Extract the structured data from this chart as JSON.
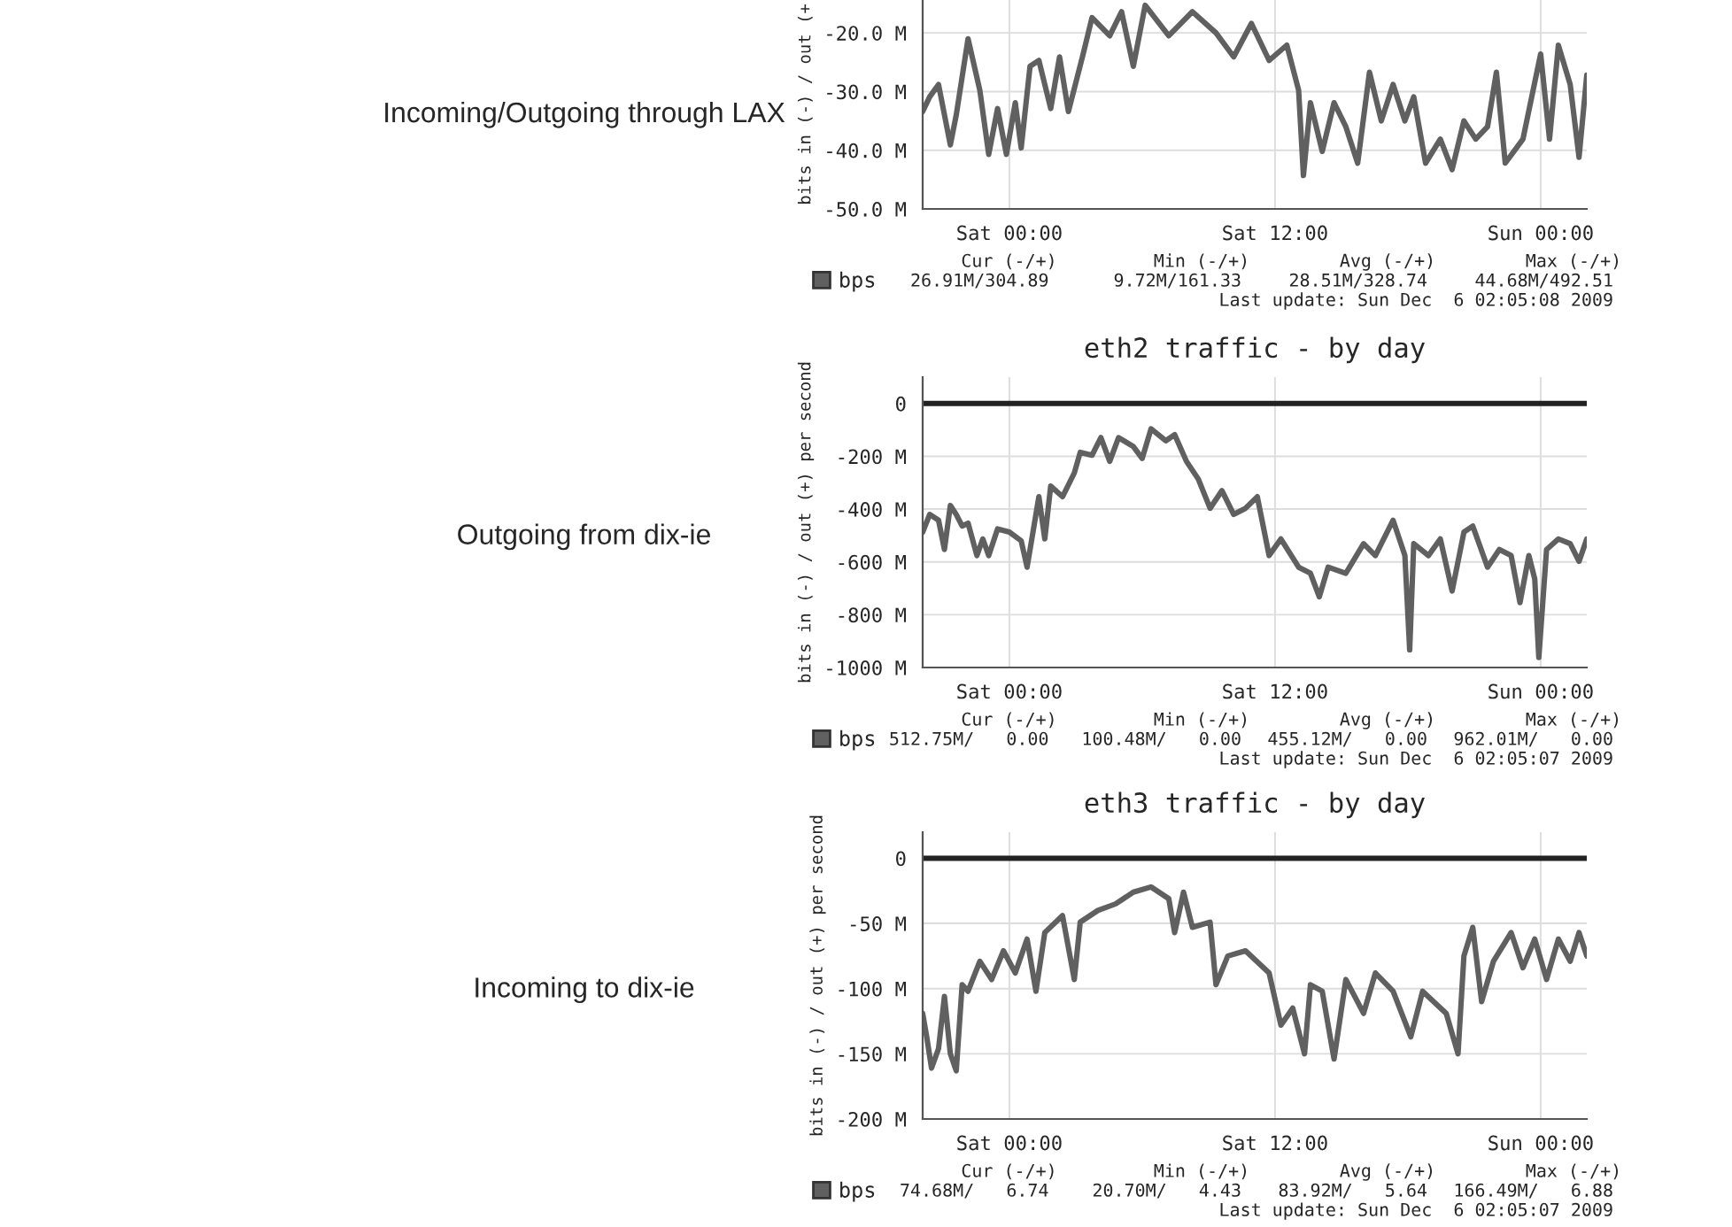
{
  "chart_data": [
    {
      "type": "line",
      "subtitle": "Incoming/Outgoing through LAX",
      "ylabel": "bits in (-) / out (+",
      "xlim": [
        "2009-12-04T20:05",
        "2009-12-06T02:05"
      ],
      "xticks": [
        {
          "value": "2009-12-05T00:00",
          "label": "Sat 00:00"
        },
        {
          "value": "2009-12-05T12:00",
          "label": "Sat 12:00"
        },
        {
          "value": "2009-12-06T00:00",
          "label": "Sun 00:00"
        }
      ],
      "ylim": [
        -50,
        -14.4
      ],
      "yticks": [
        {
          "value": -50,
          "label": "-50.0 M"
        },
        {
          "value": -40,
          "label": "-40.0 M"
        },
        {
          "value": -30,
          "label": "-30.0 M"
        },
        {
          "value": -20,
          "label": "-20.0 M"
        }
      ],
      "grid": true,
      "legend": "bottom left",
      "series": [
        {
          "name": "bps",
          "color": "#606060",
          "x": [
            "2009-12-04T20:05",
            "2009-12-04T20:24",
            "2009-12-04T20:48",
            "2009-12-04T21:20",
            "2009-12-04T21:36",
            "2009-12-04T22:08",
            "2009-12-04T22:40",
            "2009-12-04T23:04",
            "2009-12-04T23:28",
            "2009-12-04T23:52",
            "2009-12-05T00:16",
            "2009-12-05T00:32",
            "2009-12-05T00:56",
            "2009-12-05T01:20",
            "2009-12-05T01:52",
            "2009-12-05T02:16",
            "2009-12-05T02:40",
            "2009-12-05T03:20",
            "2009-12-05T03:44",
            "2009-12-05T04:32",
            "2009-12-05T05:04",
            "2009-12-05T05:36",
            "2009-12-05T06:08",
            "2009-12-05T07:12",
            "2009-12-05T08:16",
            "2009-12-05T09:20",
            "2009-12-05T10:08",
            "2009-12-05T10:56",
            "2009-12-05T11:44",
            "2009-12-05T12:32",
            "2009-12-05T13:04",
            "2009-12-05T13:17",
            "2009-12-05T13:36",
            "2009-12-05T14:08",
            "2009-12-05T14:40",
            "2009-12-05T15:12",
            "2009-12-05T15:44",
            "2009-12-05T16:16",
            "2009-12-05T16:48",
            "2009-12-05T17:20",
            "2009-12-05T17:52",
            "2009-12-05T18:16",
            "2009-12-05T18:48",
            "2009-12-05T19:28",
            "2009-12-05T20:00",
            "2009-12-05T20:32",
            "2009-12-05T21:04",
            "2009-12-05T21:36",
            "2009-12-05T22:00",
            "2009-12-05T22:24",
            "2009-12-05T23:12",
            "2009-12-06T00:00",
            "2009-12-06T00:24",
            "2009-12-06T00:48",
            "2009-12-06T01:20",
            "2009-12-06T01:44",
            "2009-12-06T02:05"
          ],
          "values": [
            -33.4,
            -30.9,
            -28.8,
            -39.1,
            -34.0,
            -21.0,
            -29.8,
            -40.7,
            -32.9,
            -40.7,
            -31.9,
            -39.6,
            -25.7,
            -24.7,
            -32.9,
            -24.1,
            -33.4,
            -23.6,
            -17.4,
            -20.5,
            -16.4,
            -25.7,
            -15.3,
            -20.5,
            -16.4,
            -20.0,
            -24.1,
            -18.4,
            -24.7,
            -22.1,
            -29.8,
            -44.3,
            -31.9,
            -40.2,
            -31.9,
            -36.0,
            -42.2,
            -26.7,
            -35.0,
            -28.8,
            -35.0,
            -30.9,
            -42.2,
            -38.1,
            -43.3,
            -35.0,
            -38.1,
            -36.0,
            -26.7,
            -42.2,
            -38.1,
            -23.6,
            -38.1,
            -22.1,
            -28.8,
            -41.2,
            -27.2
          ]
        }
      ],
      "annotations": [
        "Cur (-/+)",
        "Min (-/+)",
        "Avg (-/+)",
        "Max (-/+)",
        "26.91M/304.89",
        "9.72M/161.33",
        "28.51M/328.74",
        "44.68M/492.51",
        "Last update: Sun Dec  6 02:05:08 2009"
      ]
    },
    {
      "type": "line",
      "title": "eth2 traffic - by day",
      "subtitle": "Outgoing from dix-ie",
      "ylabel": "bits in (-) / out (+) per second",
      "xlim": [
        "2009-12-04T20:05",
        "2009-12-06T02:05"
      ],
      "xticks": [
        {
          "value": "2009-12-05T00:00",
          "label": "Sat 00:00"
        },
        {
          "value": "2009-12-05T12:00",
          "label": "Sat 12:00"
        },
        {
          "value": "2009-12-06T00:00",
          "label": "Sun 00:00"
        }
      ],
      "ylim": [
        -1000,
        100
      ],
      "yticks": [
        {
          "value": -1000,
          "label": "-1000 M"
        },
        {
          "value": -800,
          "label": "-800 M"
        },
        {
          "value": -600,
          "label": "-600 M"
        },
        {
          "value": -400,
          "label": "-400 M"
        },
        {
          "value": -200,
          "label": "-200 M"
        },
        0
      ],
      "grid": true,
      "legend": "bottom left",
      "series": [
        {
          "name": "bps",
          "color": "#606060",
          "x": [
            "2009-12-04T20:05",
            "2009-12-04T20:24",
            "2009-12-04T20:48",
            "2009-12-04T21:04",
            "2009-12-04T21:20",
            "2009-12-04T21:36",
            "2009-12-04T21:52",
            "2009-12-04T22:08",
            "2009-12-04T22:32",
            "2009-12-04T22:48",
            "2009-12-04T23:04",
            "2009-12-04T23:28",
            "2009-12-05T00:00",
            "2009-12-05T00:32",
            "2009-12-05T00:48",
            "2009-12-05T01:04",
            "2009-12-05T01:20",
            "2009-12-05T01:36",
            "2009-12-05T01:52",
            "2009-12-05T02:24",
            "2009-12-05T02:56",
            "2009-12-05T03:12",
            "2009-12-05T03:44",
            "2009-12-05T04:08",
            "2009-12-05T04:32",
            "2009-12-05T04:56",
            "2009-12-05T05:36",
            "2009-12-05T06:00",
            "2009-12-05T06:24",
            "2009-12-05T07:04",
            "2009-12-05T07:28",
            "2009-12-05T08:00",
            "2009-12-05T08:32",
            "2009-12-05T09:04",
            "2009-12-05T09:36",
            "2009-12-05T10:08",
            "2009-12-05T10:40",
            "2009-12-05T11:12",
            "2009-12-05T11:44",
            "2009-12-05T12:16",
            "2009-12-05T13:04",
            "2009-12-05T13:36",
            "2009-12-05T14:00",
            "2009-12-05T14:24",
            "2009-12-05T15:12",
            "2009-12-05T16:00",
            "2009-12-05T16:32",
            "2009-12-05T17:20",
            "2009-12-05T17:52",
            "2009-12-05T18:05",
            "2009-12-05T18:16",
            "2009-12-05T18:56",
            "2009-12-05T19:28",
            "2009-12-05T20:00",
            "2009-12-05T20:32",
            "2009-12-05T20:56",
            "2009-12-05T21:36",
            "2009-12-05T22:08",
            "2009-12-05T22:40",
            "2009-12-05T23:04",
            "2009-12-05T23:28",
            "2009-12-05T23:44",
            "2009-12-05T23:55",
            "2009-12-06T00:16",
            "2009-12-06T00:48",
            "2009-12-06T01:20",
            "2009-12-06T01:44",
            "2009-12-06T02:05"
          ],
          "values": [
            -487,
            -420,
            -442,
            -553,
            -386,
            -420,
            -464,
            -453,
            -576,
            -513,
            -576,
            -475,
            -487,
            -520,
            -620,
            -487,
            -353,
            -513,
            -313,
            -353,
            -263,
            -185,
            -196,
            -129,
            -219,
            -129,
            -163,
            -208,
            -96,
            -141,
            -118,
            -219,
            -286,
            -397,
            -330,
            -420,
            -397,
            -353,
            -576,
            -513,
            -620,
            -643,
            -732,
            -620,
            -643,
            -531,
            -576,
            -442,
            -576,
            -933,
            -531,
            -576,
            -513,
            -710,
            -487,
            -464,
            -620,
            -553,
            -576,
            -754,
            -576,
            -665,
            -962,
            -553,
            -513,
            -531,
            -598,
            -513
          ]
        },
        {
          "color": "#222222",
          "x": [
            "2009-12-04T20:05",
            "2009-12-06T02:05"
          ],
          "values": [
            0,
            0
          ]
        }
      ],
      "annotations": [
        "Cur (-/+)",
        "Min (-/+)",
        "Avg (-/+)",
        "Max (-/+)",
        "512.75M/   0.00",
        "100.48M/   0.00",
        "455.12M/   0.00",
        "962.01M/   0.00",
        "Last update: Sun Dec  6 02:05:07 2009"
      ]
    },
    {
      "type": "line",
      "title": "eth3 traffic - by day",
      "subtitle": "Incoming to dix-ie",
      "ylabel": "bits in (-) / out (+) per second",
      "xlim": [
        "2009-12-04T20:05",
        "2009-12-06T02:05"
      ],
      "xticks": [
        {
          "value": "2009-12-05T00:00",
          "label": "Sat 00:00"
        },
        {
          "value": "2009-12-05T12:00",
          "label": "Sat 12:00"
        },
        {
          "value": "2009-12-06T00:00",
          "label": "Sun 00:00"
        }
      ],
      "ylim": [
        -200,
        20
      ],
      "yticks": [
        {
          "value": -200,
          "label": "-200 M"
        },
        {
          "value": -150,
          "label": "-150 M"
        },
        {
          "value": -100,
          "label": "-100 M"
        },
        {
          "value": -50,
          "label": "-50 M"
        },
        0
      ],
      "grid": true,
      "legend": "bottom left",
      "series": [
        {
          "name": "bps",
          "color": "#606060",
          "x": [
            "2009-12-04T20:05",
            "2009-12-04T20:16",
            "2009-12-04T20:29",
            "2009-12-04T20:48",
            "2009-12-04T21:04",
            "2009-12-04T21:20",
            "2009-12-04T21:36",
            "2009-12-04T21:52",
            "2009-12-04T22:08",
            "2009-12-04T22:40",
            "2009-12-04T23:12",
            "2009-12-04T23:44",
            "2009-12-05T00:16",
            "2009-12-05T00:48",
            "2009-12-05T01:12",
            "2009-12-05T01:36",
            "2009-12-05T02:24",
            "2009-12-05T02:56",
            "2009-12-05T03:12",
            "2009-12-05T04:00",
            "2009-12-05T04:48",
            "2009-12-05T05:36",
            "2009-12-05T06:24",
            "2009-12-05T07:12",
            "2009-12-05T07:28",
            "2009-12-05T07:52",
            "2009-12-05T08:16",
            "2009-12-05T09:04",
            "2009-12-05T09:20",
            "2009-12-05T09:52",
            "2009-12-05T10:40",
            "2009-12-05T11:44",
            "2009-12-05T12:16",
            "2009-12-05T12:48",
            "2009-12-05T13:20",
            "2009-12-05T13:36",
            "2009-12-05T14:08",
            "2009-12-05T14:40",
            "2009-12-05T15:12",
            "2009-12-05T16:00",
            "2009-12-05T16:32",
            "2009-12-05T17:20",
            "2009-12-05T18:08",
            "2009-12-05T18:40",
            "2009-12-05T19:44",
            "2009-12-05T20:16",
            "2009-12-05T20:32",
            "2009-12-05T20:56",
            "2009-12-05T21:20",
            "2009-12-05T21:52",
            "2009-12-05T22:40",
            "2009-12-05T23:12",
            "2009-12-05T23:44",
            "2009-12-06T00:16",
            "2009-12-06T00:48",
            "2009-12-06T01:20",
            "2009-12-06T01:44",
            "2009-12-06T02:05"
          ],
          "values": [
            -119,
            -137,
            -161,
            -146,
            -106,
            -150,
            -163,
            -97,
            -102,
            -79,
            -93,
            -71,
            -88,
            -62,
            -102,
            -57,
            -44,
            -93,
            -49,
            -40,
            -35,
            -26,
            -22,
            -31,
            -57,
            -26,
            -53,
            -49,
            -97,
            -75,
            -71,
            -88,
            -128,
            -115,
            -150,
            -97,
            -102,
            -154,
            -93,
            -119,
            -88,
            -102,
            -137,
            -102,
            -119,
            -150,
            -75,
            -53,
            -110,
            -79,
            -57,
            -84,
            -62,
            -93,
            -62,
            -79,
            -57,
            -75
          ]
        },
        {
          "color": "#222222",
          "x": [
            "2009-12-04T20:05",
            "2009-12-06T02:05"
          ],
          "values": [
            0,
            0
          ]
        }
      ],
      "annotations": [
        "Cur (-/+)",
        "Min (-/+)",
        "Avg (-/+)",
        "Max (-/+)",
        "74.68M/   6.74",
        "20.70M/   4.43",
        "83.92M/   5.64",
        "166.49M/   6.88",
        "Last update: Sun Dec  6 02:05:07 2009"
      ]
    }
  ]
}
